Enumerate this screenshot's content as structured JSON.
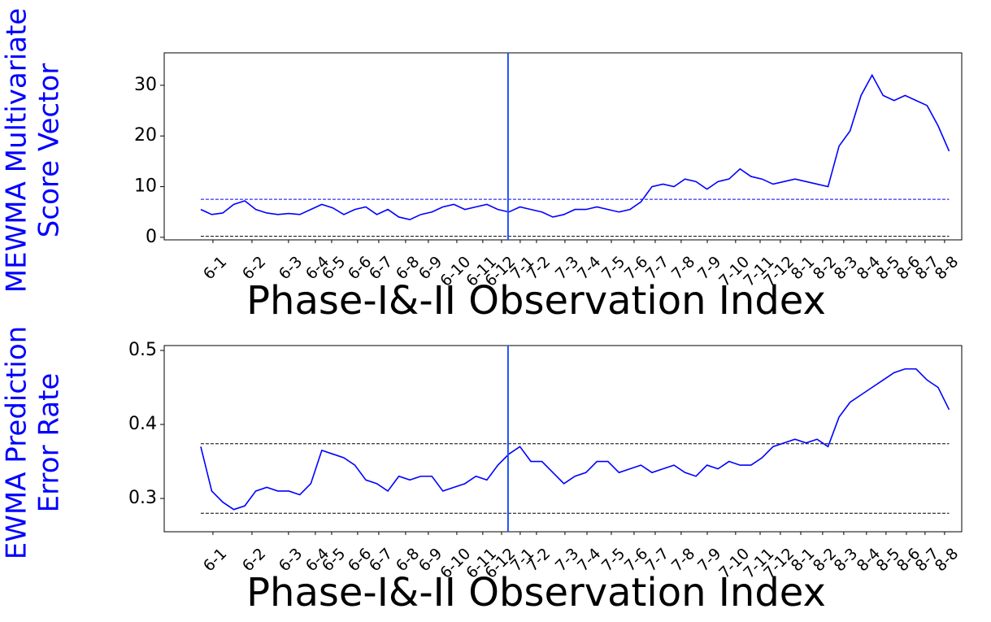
{
  "chart_data": [
    {
      "type": "line",
      "ylabel": [
        "MEWMA Multivariate",
        "Score Vector"
      ],
      "xlabel": "Phase-I&-II Observation Index",
      "x": [
        0,
        75,
        150,
        225,
        300,
        375,
        450,
        525,
        600,
        675,
        750,
        825,
        900,
        975,
        1050,
        1125,
        1200,
        1275,
        1350,
        1425,
        1500,
        1575,
        1650,
        1725,
        1800,
        1875,
        1950,
        2025,
        2100,
        2175,
        2250,
        2325,
        2400,
        2475,
        2550,
        2625,
        2700,
        2775,
        2850,
        2925,
        3000,
        3075,
        3150,
        3225,
        3300,
        3375,
        3450,
        3525,
        3600,
        3675,
        3750,
        3825,
        3900,
        3975,
        4050,
        4125,
        4200,
        4275,
        4350,
        4425,
        4500,
        4575,
        4650,
        4725,
        4800,
        4875,
        4950,
        5025,
        5100
      ],
      "series": [
        {
          "color": "#0000ff",
          "values": [
            5.5,
            4.5,
            4.8,
            6.5,
            7.2,
            5.5,
            4.8,
            4.5,
            4.7,
            4.5,
            5.5,
            6.5,
            5.8,
            4.5,
            5.5,
            6.0,
            4.5,
            5.5,
            4.0,
            3.5,
            4.5,
            5.0,
            6.0,
            6.5,
            5.5,
            6.0,
            6.5,
            5.5,
            5.0,
            6.0,
            5.5,
            5.0,
            4.0,
            4.5,
            5.5,
            5.5,
            6.0,
            5.5,
            5.0,
            5.5,
            7.0,
            10.0,
            10.5,
            10.0,
            11.5,
            11.0,
            9.5,
            11.0,
            11.5,
            13.5,
            12.0,
            11.5,
            10.5,
            11.0,
            11.5,
            11.0,
            10.5,
            10.0,
            18.0,
            21.0,
            28.0,
            32.0,
            28.0,
            27.0,
            28.0,
            27.0,
            26.0,
            22.0,
            17.0
          ]
        }
      ],
      "reference_lines": [
        {
          "value": 7.5,
          "color": "#0000ff"
        },
        {
          "value": 0.2,
          "color": "#000000"
        }
      ],
      "vline": {
        "value": 2094,
        "color": "#1f4fff"
      },
      "xlim": [
        -249,
        5186
      ],
      "ylim": [
        -0.5,
        36.4
      ],
      "yticks": [
        0,
        10,
        20,
        30
      ],
      "xticks": [
        {
          "value": 83,
          "label": "6-1"
        },
        {
          "value": 349,
          "label": "6-2"
        },
        {
          "value": 598,
          "label": "6-3"
        },
        {
          "value": 781,
          "label": "6-4"
        },
        {
          "value": 892,
          "label": "6-5"
        },
        {
          "value": 1069,
          "label": "6-6"
        },
        {
          "value": 1213,
          "label": "6-7"
        },
        {
          "value": 1396,
          "label": "6-8"
        },
        {
          "value": 1551,
          "label": "6-9"
        },
        {
          "value": 1745,
          "label": "6-10"
        },
        {
          "value": 1922,
          "label": "6-11"
        },
        {
          "value": 2050,
          "label": "6-12"
        },
        {
          "value": 2177,
          "label": "7-1"
        },
        {
          "value": 2288,
          "label": "7-2"
        },
        {
          "value": 2482,
          "label": "7-3"
        },
        {
          "value": 2632,
          "label": "7-4"
        },
        {
          "value": 2798,
          "label": "7-5"
        },
        {
          "value": 2953,
          "label": "7-6"
        },
        {
          "value": 3097,
          "label": "7-7"
        },
        {
          "value": 3274,
          "label": "7-8"
        },
        {
          "value": 3452,
          "label": "7-9"
        },
        {
          "value": 3645,
          "label": "7-10"
        },
        {
          "value": 3812,
          "label": "7-11"
        },
        {
          "value": 3950,
          "label": "7-12"
        },
        {
          "value": 4089,
          "label": "8-1"
        },
        {
          "value": 4238,
          "label": "8-2"
        },
        {
          "value": 4382,
          "label": "8-3"
        },
        {
          "value": 4537,
          "label": "8-4"
        },
        {
          "value": 4670,
          "label": "8-5"
        },
        {
          "value": 4809,
          "label": "8-6"
        },
        {
          "value": 4936,
          "label": "8-7"
        },
        {
          "value": 5069,
          "label": "8-8"
        }
      ]
    },
    {
      "type": "line",
      "ylabel": [
        "EWMA Prediction",
        "Error Rate"
      ],
      "xlabel": "Phase-I&-II Observation Index",
      "x": [
        0,
        75,
        150,
        225,
        300,
        375,
        450,
        525,
        600,
        675,
        750,
        825,
        900,
        975,
        1050,
        1125,
        1200,
        1275,
        1350,
        1425,
        1500,
        1575,
        1650,
        1725,
        1800,
        1875,
        1950,
        2025,
        2100,
        2175,
        2250,
        2325,
        2400,
        2475,
        2550,
        2625,
        2700,
        2775,
        2850,
        2925,
        3000,
        3075,
        3150,
        3225,
        3300,
        3375,
        3450,
        3525,
        3600,
        3675,
        3750,
        3825,
        3900,
        3975,
        4050,
        4125,
        4200,
        4275,
        4350,
        4425,
        4500,
        4575,
        4650,
        4725,
        4800,
        4875,
        4950,
        5025,
        5100
      ],
      "series": [
        {
          "color": "#0000ff",
          "values": [
            0.37,
            0.31,
            0.295,
            0.285,
            0.29,
            0.31,
            0.315,
            0.31,
            0.31,
            0.305,
            0.32,
            0.365,
            0.36,
            0.355,
            0.345,
            0.325,
            0.32,
            0.31,
            0.33,
            0.325,
            0.33,
            0.33,
            0.31,
            0.315,
            0.32,
            0.33,
            0.325,
            0.345,
            0.36,
            0.37,
            0.35,
            0.35,
            0.335,
            0.32,
            0.33,
            0.335,
            0.35,
            0.35,
            0.335,
            0.34,
            0.345,
            0.335,
            0.34,
            0.345,
            0.335,
            0.33,
            0.345,
            0.34,
            0.35,
            0.345,
            0.345,
            0.355,
            0.37,
            0.375,
            0.38,
            0.375,
            0.38,
            0.37,
            0.41,
            0.43,
            0.44,
            0.45,
            0.46,
            0.47,
            0.475,
            0.475,
            0.46,
            0.45,
            0.42
          ]
        }
      ],
      "reference_lines": [
        {
          "value": 0.374,
          "color": "#000000"
        },
        {
          "value": 0.28,
          "color": "#000000"
        }
      ],
      "vline": {
        "value": 2094,
        "color": "#1f4fff"
      },
      "xlim": [
        -249,
        5186
      ],
      "ylim": [
        0.255,
        0.5066
      ],
      "yticks": [
        0.3,
        0.4,
        0.5
      ],
      "xticks": [
        {
          "value": 83,
          "label": "6-1"
        },
        {
          "value": 349,
          "label": "6-2"
        },
        {
          "value": 598,
          "label": "6-3"
        },
        {
          "value": 781,
          "label": "6-4"
        },
        {
          "value": 892,
          "label": "6-5"
        },
        {
          "value": 1069,
          "label": "6-6"
        },
        {
          "value": 1213,
          "label": "6-7"
        },
        {
          "value": 1396,
          "label": "6-8"
        },
        {
          "value": 1551,
          "label": "6-9"
        },
        {
          "value": 1745,
          "label": "6-10"
        },
        {
          "value": 1922,
          "label": "6-11"
        },
        {
          "value": 2050,
          "label": "6-12"
        },
        {
          "value": 2177,
          "label": "7-1"
        },
        {
          "value": 2288,
          "label": "7-2"
        },
        {
          "value": 2482,
          "label": "7-3"
        },
        {
          "value": 2632,
          "label": "7-4"
        },
        {
          "value": 2798,
          "label": "7-5"
        },
        {
          "value": 2953,
          "label": "7-6"
        },
        {
          "value": 3097,
          "label": "7-7"
        },
        {
          "value": 3274,
          "label": "7-8"
        },
        {
          "value": 3452,
          "label": "7-9"
        },
        {
          "value": 3645,
          "label": "7-10"
        },
        {
          "value": 3812,
          "label": "7-11"
        },
        {
          "value": 3950,
          "label": "7-12"
        },
        {
          "value": 4089,
          "label": "8-1"
        },
        {
          "value": 4238,
          "label": "8-2"
        },
        {
          "value": 4382,
          "label": "8-3"
        },
        {
          "value": 4537,
          "label": "8-4"
        },
        {
          "value": 4670,
          "label": "8-5"
        },
        {
          "value": 4809,
          "label": "8-6"
        },
        {
          "value": 4936,
          "label": "8-7"
        },
        {
          "value": 5069,
          "label": "8-8"
        }
      ]
    }
  ]
}
